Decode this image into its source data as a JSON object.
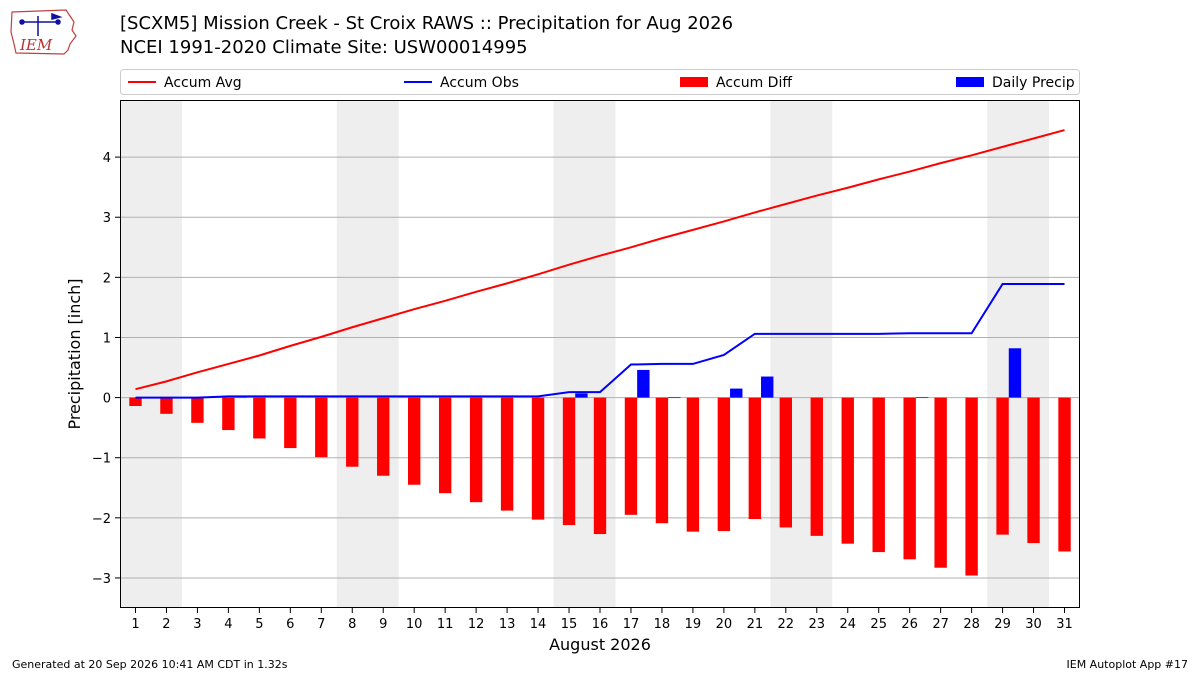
{
  "header": {
    "title_line1": "[SCXM5] Mission Creek - St Croix RAWS :: Precipitation for Aug 2026",
    "title_line2": "NCEI 1991-2020 Climate Site: USW00014995"
  },
  "logo": {
    "text": "IEM",
    "icon": "iem-iowa-logo-icon"
  },
  "footer": {
    "left": "Generated at 20 Sep 2026 10:41 AM CDT in 1.32s",
    "right": "IEM Autoplot App #17"
  },
  "colors": {
    "accum_avg": "#ff0000",
    "accum_obs": "#0000ff",
    "accum_diff": "#ff0000",
    "daily_precip": "#0000ff",
    "weekend_shade": "#eeeeee",
    "grid": "#b0b0b0"
  },
  "chart_data": {
    "type": "bar",
    "xlabel": "August 2026",
    "ylabel": "Precipitation [inch]",
    "ylim": [
      -3.5,
      4.95
    ],
    "yticks": [
      -3,
      -2,
      -1,
      0,
      1,
      2,
      3,
      4
    ],
    "ytick_labels": [
      "−3",
      "−2",
      "−1",
      "0",
      "1",
      "2",
      "3",
      "4"
    ],
    "x": [
      1,
      2,
      3,
      4,
      5,
      6,
      7,
      8,
      9,
      10,
      11,
      12,
      13,
      14,
      15,
      16,
      17,
      18,
      19,
      20,
      21,
      22,
      23,
      24,
      25,
      26,
      27,
      28,
      29,
      30,
      31
    ],
    "grid": true,
    "legend_position": "top",
    "shaded_days": [
      [
        1,
        2
      ],
      [
        8,
        9
      ],
      [
        15,
        16
      ],
      [
        22,
        23
      ],
      [
        29,
        30
      ]
    ],
    "series": [
      {
        "name": "Accum Avg",
        "kind": "line",
        "values": [
          0.14,
          0.27,
          0.42,
          0.56,
          0.7,
          0.86,
          1.01,
          1.17,
          1.32,
          1.47,
          1.61,
          1.76,
          1.9,
          2.05,
          2.21,
          2.36,
          2.5,
          2.65,
          2.79,
          2.93,
          3.08,
          3.22,
          3.36,
          3.49,
          3.63,
          3.76,
          3.9,
          4.03,
          4.17,
          4.31,
          4.45
        ]
      },
      {
        "name": "Accum Obs",
        "kind": "line",
        "values": [
          0,
          0,
          0,
          0.02,
          0.02,
          0.02,
          0.02,
          0.02,
          0.02,
          0.02,
          0.02,
          0.02,
          0.02,
          0.02,
          0.09,
          0.09,
          0.55,
          0.56,
          0.56,
          0.71,
          1.06,
          1.06,
          1.06,
          1.06,
          1.06,
          1.07,
          1.07,
          1.07,
          1.89,
          1.89,
          1.89
        ]
      },
      {
        "name": "Accum Diff",
        "kind": "bar",
        "offset": "left",
        "values": [
          -0.14,
          -0.27,
          -0.42,
          -0.54,
          -0.68,
          -0.84,
          -0.99,
          -1.15,
          -1.3,
          -1.45,
          -1.59,
          -1.74,
          -1.88,
          -2.03,
          -2.12,
          -2.27,
          -1.95,
          -2.09,
          -2.23,
          -2.22,
          -2.02,
          -2.16,
          -2.3,
          -2.43,
          -2.57,
          -2.69,
          -2.83,
          -2.96,
          -2.28,
          -2.42,
          -2.56
        ]
      },
      {
        "name": "Daily Precip",
        "kind": "bar",
        "offset": "right",
        "values": [
          0,
          0,
          0,
          0.02,
          0,
          0,
          0,
          0,
          0,
          0,
          0,
          0,
          0,
          0,
          0.07,
          0,
          0.46,
          0.01,
          0,
          0.15,
          0.35,
          0,
          0,
          0,
          0,
          0.01,
          0,
          0,
          0.82,
          0,
          0
        ]
      }
    ]
  }
}
